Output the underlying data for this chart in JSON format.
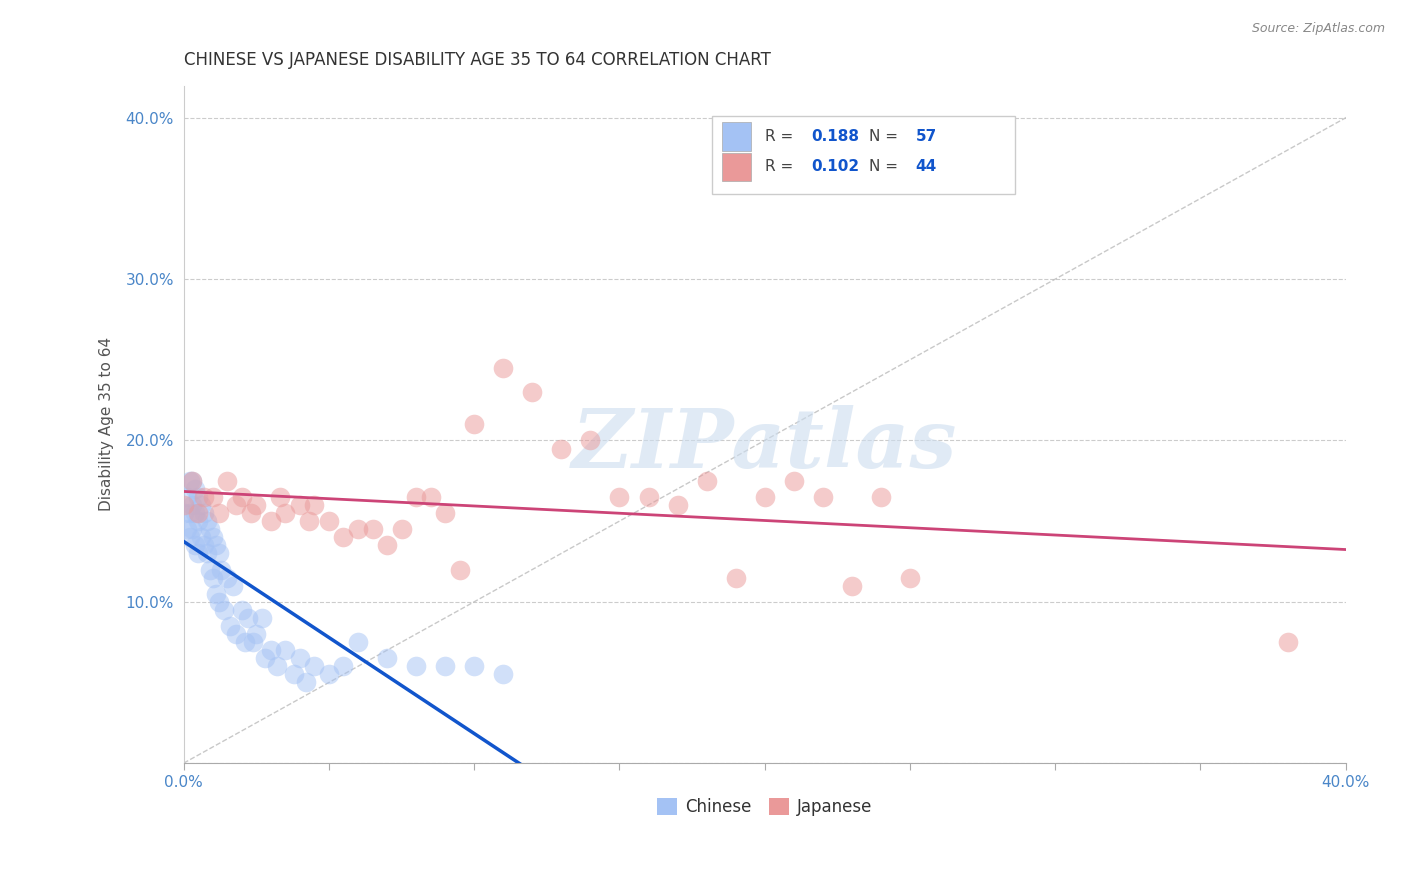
{
  "title": "CHINESE VS JAPANESE DISABILITY AGE 35 TO 64 CORRELATION CHART",
  "source": "Source: ZipAtlas.com",
  "ylabel": "Disability Age 35 to 64",
  "xlim": [
    0.0,
    0.4
  ],
  "ylim": [
    0.0,
    0.42
  ],
  "watermark_text": "ZIPatlas",
  "chinese_R": "0.188",
  "chinese_N": "57",
  "japanese_R": "0.102",
  "japanese_N": "44",
  "chinese_color": "#a4c2f4",
  "japanese_color": "#ea9999",
  "trendline_chinese_color": "#1155cc",
  "trendline_japanese_color": "#cc4477",
  "diagonal_color": "#bbbbbb",
  "grid_color": "#cccccc",
  "text_color_blue": "#1155cc",
  "tick_color": "#4a86c8",
  "chinese_x": [
    0.0,
    0.001,
    0.001,
    0.002,
    0.002,
    0.002,
    0.003,
    0.003,
    0.003,
    0.004,
    0.004,
    0.004,
    0.005,
    0.005,
    0.005,
    0.006,
    0.006,
    0.007,
    0.007,
    0.008,
    0.008,
    0.009,
    0.009,
    0.01,
    0.01,
    0.011,
    0.011,
    0.012,
    0.012,
    0.013,
    0.014,
    0.015,
    0.016,
    0.017,
    0.018,
    0.02,
    0.021,
    0.022,
    0.024,
    0.025,
    0.027,
    0.028,
    0.03,
    0.032,
    0.035,
    0.038,
    0.04,
    0.042,
    0.045,
    0.05,
    0.055,
    0.06,
    0.07,
    0.08,
    0.09,
    0.1,
    0.11
  ],
  "chinese_y": [
    0.155,
    0.165,
    0.145,
    0.175,
    0.155,
    0.14,
    0.175,
    0.16,
    0.145,
    0.17,
    0.155,
    0.135,
    0.165,
    0.15,
    0.13,
    0.16,
    0.14,
    0.155,
    0.135,
    0.15,
    0.13,
    0.145,
    0.12,
    0.14,
    0.115,
    0.135,
    0.105,
    0.13,
    0.1,
    0.12,
    0.095,
    0.115,
    0.085,
    0.11,
    0.08,
    0.095,
    0.075,
    0.09,
    0.075,
    0.08,
    0.09,
    0.065,
    0.07,
    0.06,
    0.07,
    0.055,
    0.065,
    0.05,
    0.06,
    0.055,
    0.06,
    0.075,
    0.065,
    0.06,
    0.06,
    0.06,
    0.055
  ],
  "japanese_x": [
    0.0,
    0.003,
    0.005,
    0.007,
    0.01,
    0.012,
    0.015,
    0.018,
    0.02,
    0.023,
    0.025,
    0.03,
    0.033,
    0.035,
    0.04,
    0.043,
    0.045,
    0.05,
    0.055,
    0.06,
    0.065,
    0.07,
    0.075,
    0.08,
    0.085,
    0.09,
    0.095,
    0.1,
    0.11,
    0.12,
    0.13,
    0.14,
    0.15,
    0.16,
    0.17,
    0.18,
    0.19,
    0.2,
    0.21,
    0.22,
    0.23,
    0.24,
    0.25,
    0.38
  ],
  "japanese_y": [
    0.16,
    0.175,
    0.155,
    0.165,
    0.165,
    0.155,
    0.175,
    0.16,
    0.165,
    0.155,
    0.16,
    0.15,
    0.165,
    0.155,
    0.16,
    0.15,
    0.16,
    0.15,
    0.14,
    0.145,
    0.145,
    0.135,
    0.145,
    0.165,
    0.165,
    0.155,
    0.12,
    0.21,
    0.245,
    0.23,
    0.195,
    0.2,
    0.165,
    0.165,
    0.16,
    0.175,
    0.115,
    0.165,
    0.175,
    0.165,
    0.11,
    0.165,
    0.115,
    0.075
  ]
}
